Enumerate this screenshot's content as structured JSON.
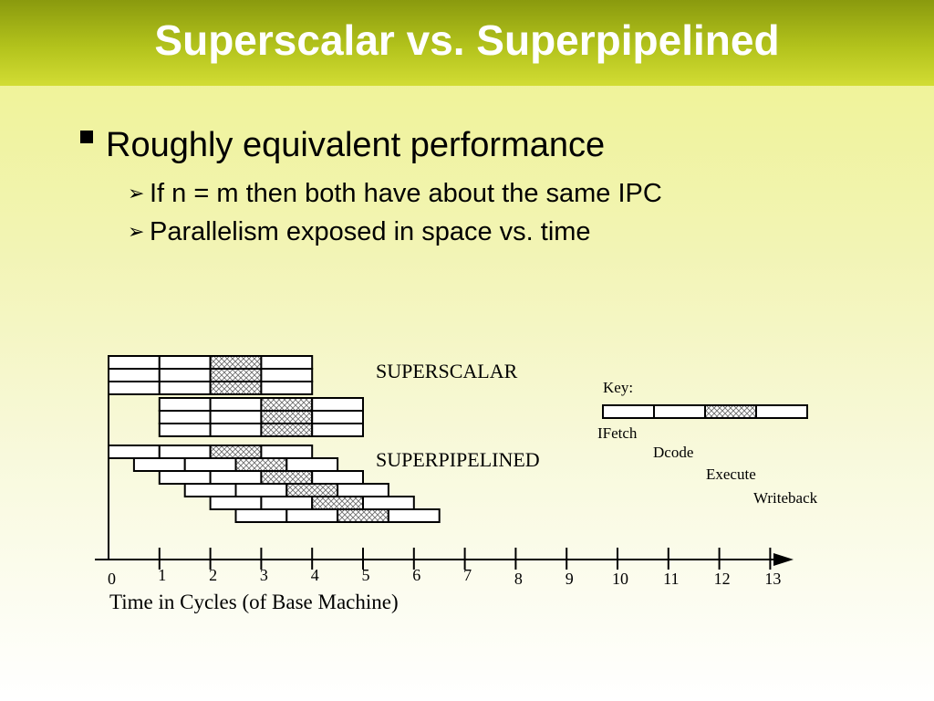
{
  "slide": {
    "title": "Superscalar vs. Superpipelined",
    "bullets": [
      {
        "text": "Roughly equivalent performance",
        "level": 1
      },
      {
        "text": "If n = m then both have about the same IPC",
        "level": 2
      },
      {
        "text": "Parallelism exposed in space vs. time",
        "level": 2
      }
    ]
  },
  "diagram": {
    "superscalar_label": "SUPERSCALAR",
    "superpipelined_label": "SUPERPIPELINED",
    "key_label": "Key:",
    "stages": [
      "IFetch",
      "Dcode",
      "Execute",
      "Writeback"
    ],
    "axis_label": "Time in Cycles (of Base Machine)",
    "axis_ticks": [
      "0",
      "1",
      "2",
      "3",
      "4",
      "5",
      "6",
      "7",
      "8",
      "9",
      "10",
      "11",
      "12",
      "13"
    ],
    "superscalar_instructions": [
      {
        "start_cycle": 0
      },
      {
        "start_cycle": 0
      },
      {
        "start_cycle": 0
      },
      {
        "start_cycle": 1
      },
      {
        "start_cycle": 1
      },
      {
        "start_cycle": 1
      }
    ],
    "superpipelined_instructions": [
      {
        "start_cycle": 0
      },
      {
        "start_cycle": 0.5
      },
      {
        "start_cycle": 1
      },
      {
        "start_cycle": 1.5
      },
      {
        "start_cycle": 2
      },
      {
        "start_cycle": 2.5
      }
    ],
    "colors": {
      "title_text": "#ffffff",
      "title_bar": "#a7b718",
      "hatch": "#8a8a8a",
      "line": "#000000"
    }
  }
}
